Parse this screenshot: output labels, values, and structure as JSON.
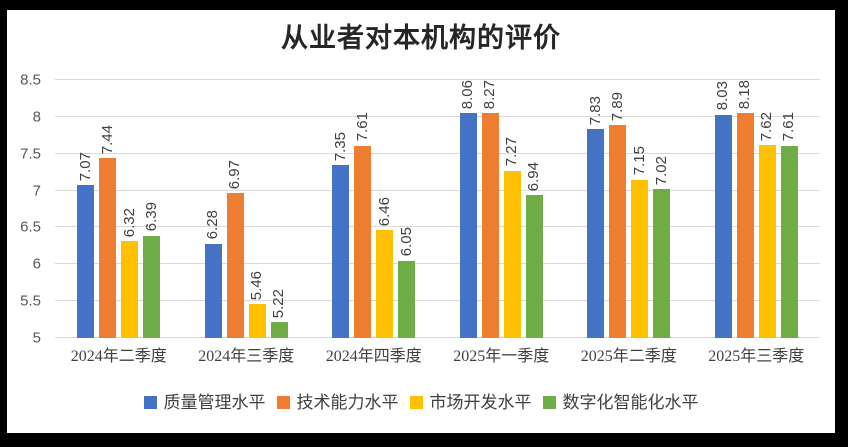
{
  "frame": {
    "background_color": "#000000",
    "panel_color": "#ffffff"
  },
  "colors": {
    "gridline": "#d9d9d9",
    "axis_tick_text": "#595959",
    "category_text": "#404040",
    "data_label_text": "#404040",
    "title_text": "#262626",
    "legend_text": "#404040"
  },
  "chart_data": {
    "type": "bar",
    "title": "从业者对本机构的评价",
    "categories": [
      "2024年二季度",
      "2024年三季度",
      "2024年四季度",
      "2025年一季度",
      "2025年二季度",
      "2025年三季度"
    ],
    "series": [
      {
        "name": "质量管理水平",
        "color": "#4472C4",
        "values": [
          7.07,
          6.28,
          7.35,
          8.06,
          7.83,
          8.03
        ]
      },
      {
        "name": "技术能力水平",
        "color": "#ED7D31",
        "values": [
          7.44,
          6.97,
          7.61,
          8.27,
          7.89,
          8.18
        ]
      },
      {
        "name": "市场开发水平",
        "color": "#FFC000",
        "values": [
          6.32,
          5.46,
          6.46,
          7.27,
          7.15,
          7.62
        ]
      },
      {
        "name": "数字化智能化水平",
        "color": "#70AD47",
        "values": [
          6.39,
          5.22,
          6.05,
          6.94,
          7.02,
          7.61
        ]
      }
    ],
    "ylim": [
      5,
      8.5
    ],
    "ytick_labels": [
      "8.5",
      "8",
      "7.5",
      "7",
      "6.5",
      "6",
      "5.5",
      "5"
    ],
    "yticks": [
      8.5,
      8,
      7.5,
      7,
      6.5,
      6,
      5.5,
      5
    ],
    "grid": true,
    "legend_position": "bottom",
    "data_labels": true,
    "data_labels_rotated": true,
    "data_label_decimals": 2
  }
}
